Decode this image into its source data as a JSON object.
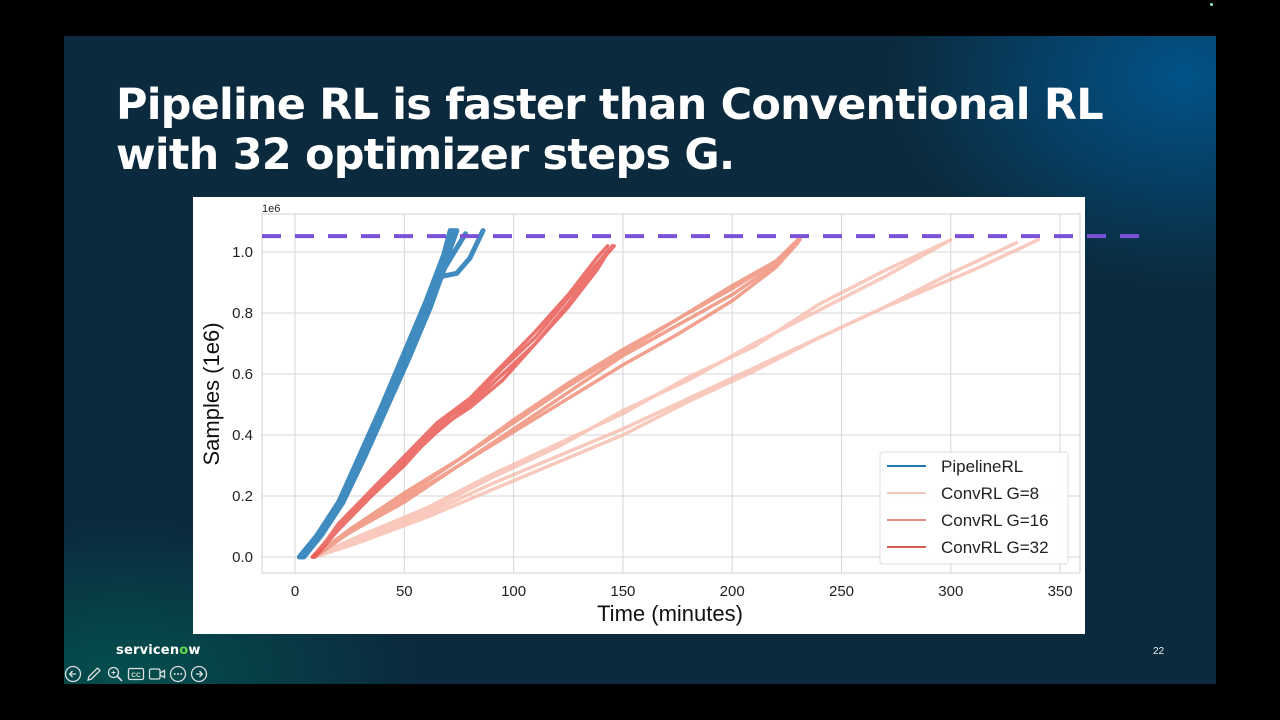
{
  "slide": {
    "title_lines": [
      "Pipeline RL is faster than Conventional RL",
      "with 32 optimizer steps G."
    ],
    "brand": {
      "prefix": "servicen",
      "o": "o",
      "suffix": "w"
    },
    "page_number": "22",
    "colors": {
      "background": "#0b2a3d",
      "title": "#ffffff",
      "brand_accent": "#62d84e"
    }
  },
  "toolbar": {
    "buttons": [
      {
        "name": "previous-slide-button",
        "icon": "arrow-left-circle-icon"
      },
      {
        "name": "pen-button",
        "icon": "pencil-icon"
      },
      {
        "name": "zoom-button",
        "icon": "magnifier-icon"
      },
      {
        "name": "captions-button",
        "icon": "cc-icon"
      },
      {
        "name": "camera-button",
        "icon": "video-camera-icon"
      },
      {
        "name": "more-options-button",
        "icon": "ellipsis-circle-icon"
      },
      {
        "name": "next-slide-button",
        "icon": "arrow-right-circle-icon"
      }
    ]
  },
  "chart_data": {
    "type": "line",
    "title": "",
    "xlabel": "Time (minutes)",
    "ylabel": "Samples (1e6)",
    "y_offset_label": "1e6",
    "xlim": [
      -15,
      357
    ],
    "ylim": [
      -0.05,
      1.1
    ],
    "xticks": [
      0,
      50,
      100,
      150,
      200,
      250,
      300,
      350
    ],
    "yticks": [
      0.0,
      0.2,
      0.4,
      0.6,
      0.8,
      1.0
    ],
    "ytick_labels": [
      "0.0",
      "0.2",
      "0.4",
      "0.6",
      "0.8",
      "1.0"
    ],
    "grid": true,
    "legend_position": "lower right",
    "reference_line": {
      "y": 1.052,
      "style": "dashed",
      "color": "#7b52d6"
    },
    "series": [
      {
        "name": "PipelineRL",
        "color": "#1f77b4",
        "legend_color": "#1f77b4",
        "opacity": 0.85,
        "width": 5,
        "runs": [
          {
            "x": [
              2,
              10,
              20,
              30,
              40,
              50,
              60,
              70,
              74
            ],
            "y": [
              0.0,
              0.07,
              0.18,
              0.33,
              0.49,
              0.65,
              0.82,
              0.99,
              1.07
            ]
          },
          {
            "x": [
              3,
              11,
              21,
              31,
              41,
              51,
              61,
              69,
              72
            ],
            "y": [
              0.0,
              0.07,
              0.18,
              0.33,
              0.5,
              0.66,
              0.83,
              0.99,
              1.07
            ]
          },
          {
            "x": [
              4,
              12,
              22,
              32,
              42,
              52,
              62,
              70,
              73
            ],
            "y": [
              0.0,
              0.07,
              0.18,
              0.33,
              0.49,
              0.65,
              0.82,
              0.98,
              1.07
            ]
          },
          {
            "x": [
              2,
              10,
              20,
              30,
              40,
              50,
              60,
              68,
              71
            ],
            "y": [
              0.0,
              0.07,
              0.18,
              0.34,
              0.5,
              0.67,
              0.84,
              0.99,
              1.07
            ]
          },
          {
            "x": [
              3,
              11,
              21,
              31,
              41,
              51,
              61,
              67,
              72,
              78
            ],
            "y": [
              0.0,
              0.07,
              0.18,
              0.33,
              0.49,
              0.65,
              0.82,
              0.93,
              0.99,
              1.06
            ]
          },
          {
            "x": [
              3,
              11,
              21,
              31,
              41,
              51,
              61,
              67,
              74,
              80,
              86
            ],
            "y": [
              0.0,
              0.07,
              0.18,
              0.33,
              0.49,
              0.65,
              0.82,
              0.92,
              0.93,
              0.98,
              1.07
            ]
          }
        ]
      },
      {
        "name": "ConvRL G=8",
        "color": "#f6b8a6",
        "legend_color": "#f3c9bd",
        "opacity": 0.75,
        "width": 3.5,
        "runs": [
          {
            "x": [
              8,
              30,
              60,
              90,
              120,
              150,
              180,
              210,
              240,
              270,
              300
            ],
            "y": [
              0.0,
              0.06,
              0.15,
              0.26,
              0.36,
              0.48,
              0.58,
              0.7,
              0.81,
              0.92,
              1.04
            ]
          },
          {
            "x": [
              8,
              30,
              60,
              90,
              120,
              150,
              180,
              210,
              240,
              270,
              300
            ],
            "y": [
              0.0,
              0.07,
              0.16,
              0.27,
              0.37,
              0.47,
              0.59,
              0.69,
              0.83,
              0.94,
              1.04
            ]
          },
          {
            "x": [
              9,
              30,
              60,
              90,
              120,
              150,
              180,
              210,
              240,
              270,
              310,
              340
            ],
            "y": [
              0.0,
              0.05,
              0.13,
              0.22,
              0.31,
              0.4,
              0.51,
              0.61,
              0.72,
              0.82,
              0.94,
              1.04
            ]
          },
          {
            "x": [
              9,
              30,
              60,
              90,
              120,
              150,
              180,
              210,
              240,
              270,
              300,
              330
            ],
            "y": [
              0.0,
              0.05,
              0.14,
              0.24,
              0.33,
              0.42,
              0.52,
              0.62,
              0.72,
              0.82,
              0.93,
              1.03
            ]
          }
        ]
      },
      {
        "name": "ConvRL G=16",
        "color": "#f08a74",
        "legend_color": "#eb8f7f",
        "opacity": 0.8,
        "width": 3.5,
        "runs": [
          {
            "x": [
              8,
              25,
              50,
              75,
              100,
              125,
              150,
              175,
              200,
              220,
              230
            ],
            "y": [
              0.0,
              0.09,
              0.2,
              0.32,
              0.44,
              0.56,
              0.67,
              0.78,
              0.89,
              0.97,
              1.04
            ]
          },
          {
            "x": [
              8,
              25,
              50,
              75,
              100,
              125,
              150,
              175,
              200,
              220,
              229
            ],
            "y": [
              0.0,
              0.08,
              0.19,
              0.3,
              0.42,
              0.54,
              0.66,
              0.76,
              0.86,
              0.96,
              1.03
            ]
          },
          {
            "x": [
              9,
              25,
              50,
              75,
              100,
              125,
              150,
              175,
              200,
              220,
              231
            ],
            "y": [
              0.0,
              0.09,
              0.21,
              0.32,
              0.45,
              0.57,
              0.68,
              0.78,
              0.88,
              0.97,
              1.04
            ]
          },
          {
            "x": [
              9,
              25,
              50,
              75,
              100,
              125,
              150,
              175,
              200,
              220,
              230
            ],
            "y": [
              0.0,
              0.08,
              0.18,
              0.3,
              0.41,
              0.52,
              0.63,
              0.73,
              0.84,
              0.95,
              1.03
            ]
          }
        ]
      },
      {
        "name": "ConvRL G=32",
        "color": "#e8514a",
        "legend_color": "#d65c4f",
        "opacity": 0.8,
        "width": 3.5,
        "runs": [
          {
            "x": [
              8,
              20,
              35,
              50,
              65,
              80,
              95,
              110,
              125,
              138,
              145
            ],
            "y": [
              0.0,
              0.1,
              0.22,
              0.31,
              0.41,
              0.5,
              0.6,
              0.7,
              0.82,
              0.94,
              1.02
            ]
          },
          {
            "x": [
              8,
              20,
              35,
              50,
              65,
              80,
              95,
              110,
              125,
              138,
              144
            ],
            "y": [
              0.0,
              0.1,
              0.21,
              0.32,
              0.43,
              0.51,
              0.62,
              0.72,
              0.85,
              0.96,
              1.01
            ]
          },
          {
            "x": [
              9,
              20,
              35,
              50,
              65,
              80,
              95,
              110,
              125,
              140,
              146
            ],
            "y": [
              0.0,
              0.09,
              0.2,
              0.3,
              0.42,
              0.49,
              0.58,
              0.7,
              0.83,
              0.97,
              1.02
            ]
          },
          {
            "x": [
              9,
              20,
              35,
              50,
              65,
              80,
              95,
              110,
              125,
              138,
              143
            ],
            "y": [
              0.0,
              0.11,
              0.22,
              0.33,
              0.44,
              0.52,
              0.63,
              0.74,
              0.86,
              0.98,
              1.02
            ]
          }
        ]
      }
    ]
  }
}
